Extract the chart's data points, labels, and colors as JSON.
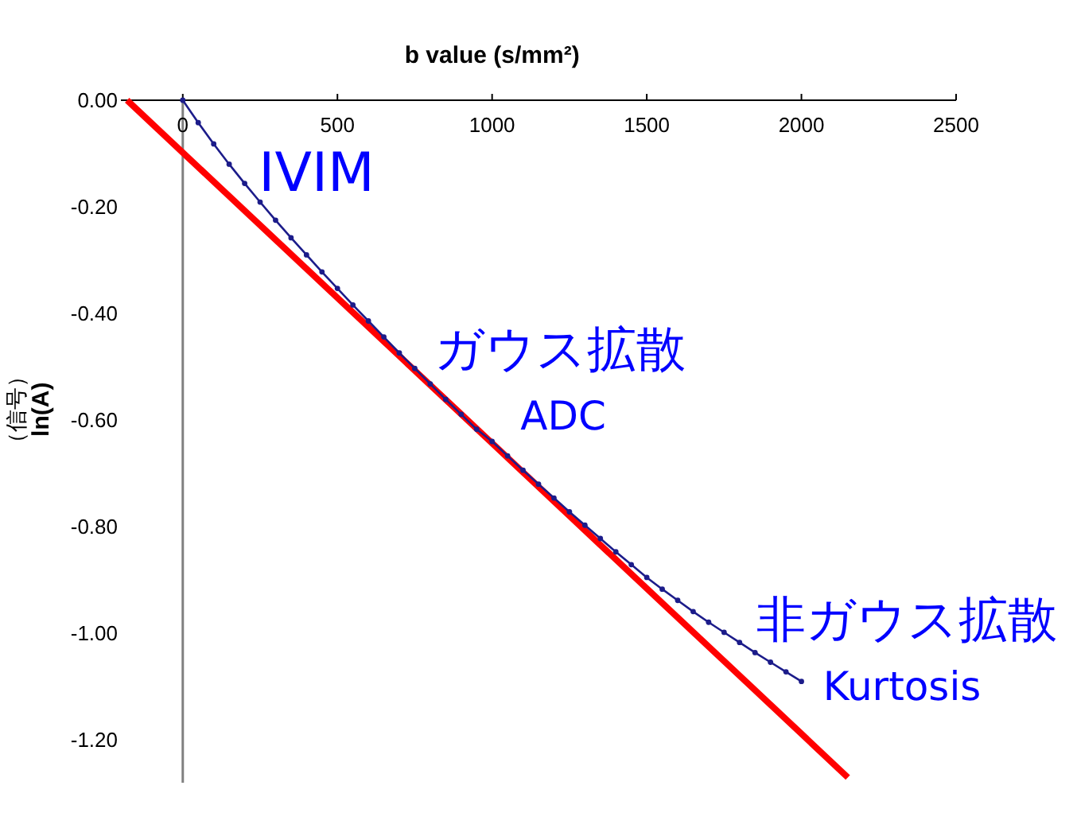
{
  "chart_data": {
    "type": "line",
    "xlabel": "b value (s/mm²)",
    "ylabel": "（信号）\nln(A)",
    "xlim": [
      -200,
      2500
    ],
    "xticks": [
      0,
      500,
      1000,
      1500,
      2000,
      2500
    ],
    "ylim": [
      -1.28,
      0
    ],
    "yticks": [
      {
        "value": 0,
        "label": "0.00"
      },
      {
        "value": -0.2,
        "label": "-0.20"
      },
      {
        "value": -0.4,
        "label": "-0.40"
      },
      {
        "value": -0.6,
        "label": "-0.60"
      },
      {
        "value": -0.8,
        "label": "-0.80"
      },
      {
        "value": -1,
        "label": "-1.00"
      },
      {
        "value": -1.2,
        "label": "-1.20"
      }
    ],
    "series": [
      {
        "color": "#1c1c8a",
        "marker": "circle",
        "x": [
          0,
          50,
          100,
          150,
          200,
          250,
          300,
          350,
          400,
          450,
          500,
          550,
          600,
          650,
          700,
          750,
          800,
          850,
          900,
          950,
          1000,
          1050,
          1100,
          1150,
          1200,
          1250,
          1300,
          1350,
          1400,
          1450,
          1500,
          1550,
          1600,
          1650,
          1700,
          1750,
          1800,
          1850,
          1900,
          1950,
          2000
        ],
        "values": [
          0,
          -0.042,
          -0.082,
          -0.12,
          -0.156,
          -0.191,
          -0.225,
          -0.258,
          -0.29,
          -0.322,
          -0.353,
          -0.384,
          -0.414,
          -0.444,
          -0.474,
          -0.503,
          -0.532,
          -0.561,
          -0.589,
          -0.617,
          -0.64,
          -0.667,
          -0.694,
          -0.72,
          -0.746,
          -0.772,
          -0.797,
          -0.822,
          -0.847,
          -0.871,
          -0.895,
          -0.917,
          -0.938,
          -0.959,
          -0.979,
          -0.998,
          -1.017,
          -1.036,
          -1.054,
          -1.072,
          -1.09
        ]
      },
      {
        "color": "#ff0000",
        "marker": "none",
        "x": [
          -180,
          2150
        ],
        "values": [
          0,
          -1.27
        ]
      }
    ],
    "annotations": [
      "IVIM",
      "ガウス拡散",
      "ADC",
      "非ガウス拡散",
      "Kurtosis"
    ]
  }
}
